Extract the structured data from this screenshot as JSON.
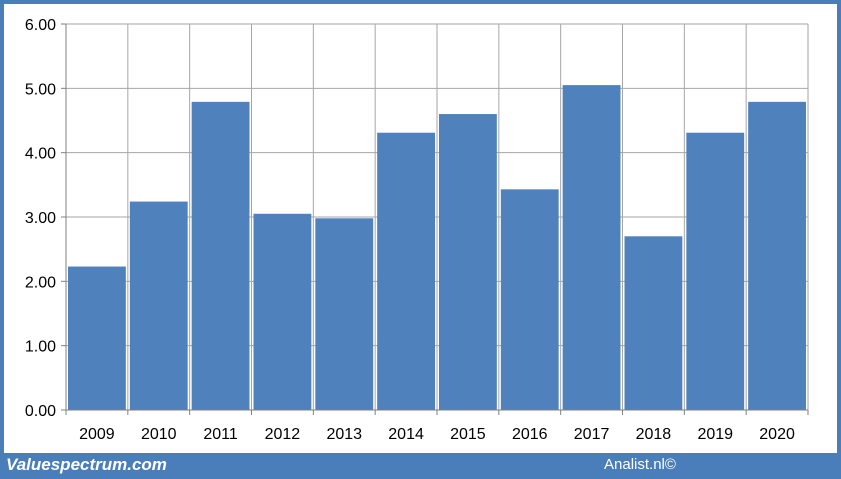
{
  "chart_data": {
    "type": "bar",
    "categories": [
      "2009",
      "2010",
      "2011",
      "2012",
      "2013",
      "2014",
      "2015",
      "2016",
      "2017",
      "2018",
      "2019",
      "2020"
    ],
    "values": [
      2.23,
      3.24,
      4.79,
      3.05,
      2.98,
      4.31,
      4.6,
      3.43,
      5.05,
      2.7,
      4.31,
      4.79
    ],
    "yticks": [
      "0.00",
      "1.00",
      "2.00",
      "3.00",
      "4.00",
      "5.00",
      "6.00"
    ],
    "ylim": [
      0,
      6
    ],
    "grid": true,
    "legend": "none",
    "bar_color": "#4f81bd",
    "grid_color": "#a6a6a6"
  },
  "footer": {
    "left_text": "Valuespectrum.com",
    "right_text": "Analist.nl©"
  },
  "colors": {
    "frame_border": "#4a7ebb",
    "background": "#ffffff"
  }
}
